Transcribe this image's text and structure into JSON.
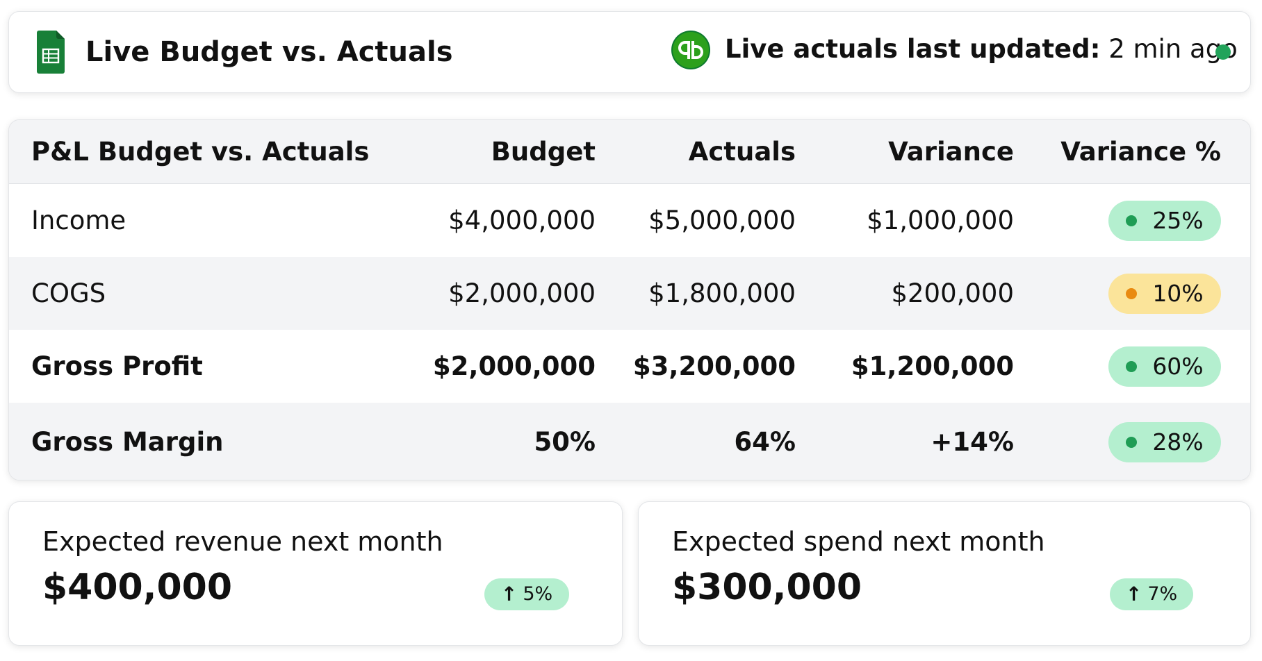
{
  "header": {
    "title": "Live Budget vs. Actuals",
    "sheets_icon": "google-sheets-icon",
    "qb_icon": "quickbooks-icon",
    "updated_label": "Live actuals last updated:",
    "updated_value": "2 min ago",
    "status_color": "#22a35a"
  },
  "table": {
    "headers": {
      "name": "P&L Budget vs. Actuals",
      "budget": "Budget",
      "actuals": "Actuals",
      "variance": "Variance",
      "variance_pct": "Variance %"
    },
    "rows": [
      {
        "name": "Income",
        "budget": "$4,000,000",
        "actuals": "$5,000,000",
        "variance": "$1,000,000",
        "variance_pct": "25%",
        "status": "green"
      },
      {
        "name": "COGS",
        "budget": "$2,000,000",
        "actuals": "$1,800,000",
        "variance": "$200,000",
        "variance_pct": "10%",
        "status": "yellow"
      },
      {
        "name": "Gross Profit",
        "budget": "$2,000,000",
        "actuals": "$3,200,000",
        "variance": "$1,200,000",
        "variance_pct": "60%",
        "status": "green"
      },
      {
        "name": "Gross Margin",
        "budget": "50%",
        "actuals": "64%",
        "variance": "+14%",
        "variance_pct": "28%",
        "status": "green"
      }
    ]
  },
  "forecast": {
    "revenue": {
      "label": "Expected revenue next month",
      "value": "$400,000",
      "change": "5%",
      "trend_icon": "arrow-up-icon"
    },
    "spend": {
      "label": "Expected spend next month",
      "value": "$300,000",
      "change": "7%",
      "trend_icon": "arrow-up-icon"
    }
  },
  "colors": {
    "badge_green_bg": "#b4efcf",
    "badge_green_dot": "#1f9d55",
    "badge_yellow_bg": "#fbe49a",
    "badge_yellow_dot": "#e98a10",
    "sheets_green": "#188038",
    "qb_green": "#2ca01c"
  }
}
